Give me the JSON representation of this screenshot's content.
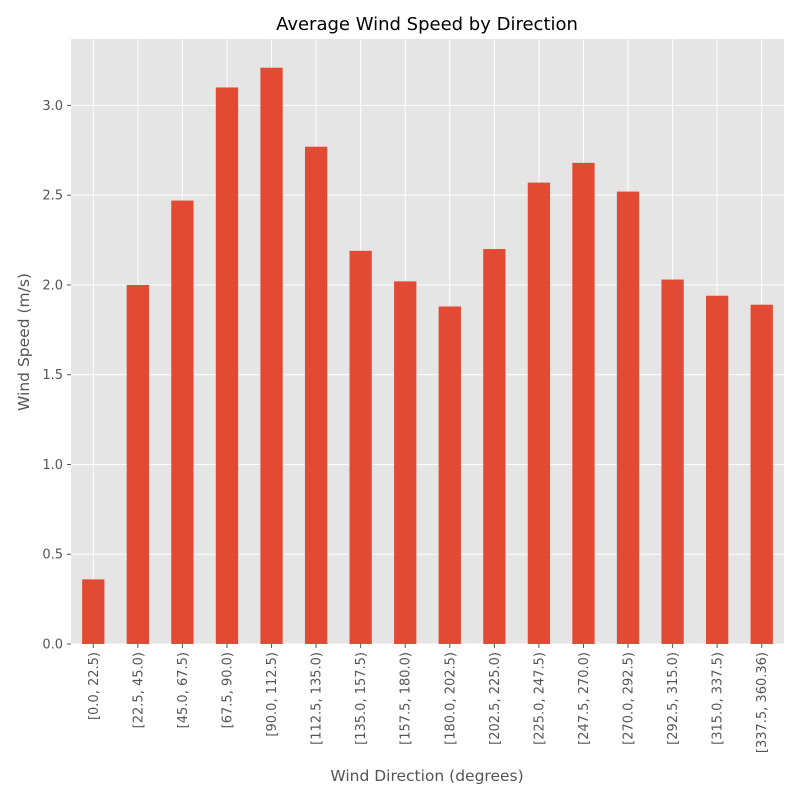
{
  "chart_data": {
    "type": "bar",
    "title": "Average Wind Speed by Direction",
    "xlabel": "Wind Direction (degrees)",
    "ylabel": "Wind Speed (m/s)",
    "categories": [
      "[0.0, 22.5)",
      "[22.5, 45.0)",
      "[45.0, 67.5)",
      "[67.5, 90.0)",
      "[90.0, 112.5)",
      "[112.5, 135.0)",
      "[135.0, 157.5)",
      "[157.5, 180.0)",
      "[180.0, 202.5)",
      "[202.5, 225.0)",
      "[225.0, 247.5)",
      "[247.5, 270.0)",
      "[270.0, 292.5)",
      "[292.5, 315.0)",
      "[315.0, 337.5)",
      "[337.5, 360.36)"
    ],
    "values": [
      0.36,
      2.0,
      2.47,
      3.1,
      3.21,
      2.77,
      2.19,
      2.02,
      1.88,
      2.2,
      2.57,
      2.68,
      2.52,
      2.03,
      1.94,
      1.89
    ],
    "ylim": [
      0,
      3.37
    ],
    "yticks": [
      "0.0",
      "0.5",
      "1.0",
      "1.5",
      "2.0",
      "2.5",
      "3.0"
    ],
    "grid": true,
    "colors": {
      "bar": "#E24A33",
      "background": "#E5E5E5",
      "grid": "#FFFFFF"
    }
  }
}
